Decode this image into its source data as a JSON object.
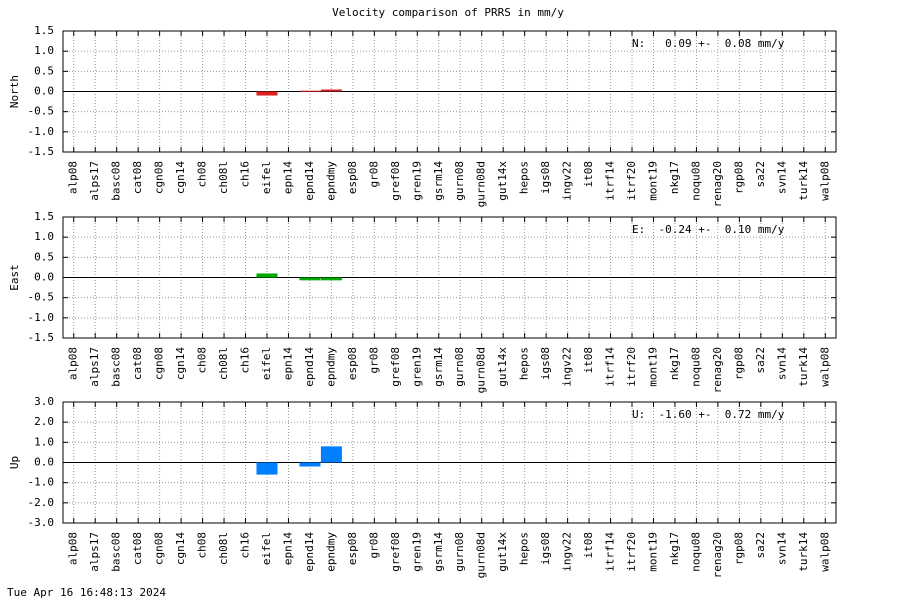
{
  "chart_data": [
    {
      "type": "bar",
      "title": "Velocity comparison of PRRS in mm/y",
      "ylabel": "North",
      "annotation": "N:   0.09 +-  0.08 mm/y",
      "color": "#dd2222",
      "grid": true,
      "categories": [
        "alp08",
        "alps17",
        "basc08",
        "cat08",
        "cgn08",
        "cgn14",
        "ch08",
        "ch08l",
        "ch16",
        "eifel",
        "epn14",
        "epnd14",
        "epndmy",
        "esp08",
        "gr08",
        "gref08",
        "gren19",
        "gsrm14",
        "gurn08",
        "gurn08d",
        "gut14x",
        "hepos",
        "igs08",
        "ingv22",
        "it08",
        "itrf14",
        "itrf20",
        "mont19",
        "nkg17",
        "noqu08",
        "renag20",
        "rgp08",
        "sa22",
        "svn14",
        "turk14",
        "walp08"
      ],
      "values": [
        null,
        null,
        null,
        null,
        null,
        null,
        null,
        null,
        null,
        -0.1,
        null,
        0.02,
        0.05,
        null,
        null,
        null,
        null,
        null,
        null,
        null,
        null,
        null,
        null,
        null,
        null,
        null,
        null,
        null,
        null,
        null,
        null,
        null,
        null,
        null,
        null,
        null
      ],
      "ylim": [
        -1.5,
        1.5
      ],
      "yticks": [
        1.5,
        {
          "value": 1.0,
          "label": "1.0"
        },
        0.5,
        {
          "value": 0.0,
          "label": "0.0"
        },
        -0.5,
        {
          "value": -1.0,
          "label": "-1.0"
        },
        -1.5
      ]
    },
    {
      "type": "bar",
      "ylabel": "East",
      "annotation": "E:  -0.24 +-  0.10 mm/y",
      "color": "#00aa00",
      "grid": true,
      "categories": [
        "alp08",
        "alps17",
        "basc08",
        "cat08",
        "cgn08",
        "cgn14",
        "ch08",
        "ch08l",
        "ch16",
        "eifel",
        "epn14",
        "epnd14",
        "epndmy",
        "esp08",
        "gr08",
        "gref08",
        "gren19",
        "gsrm14",
        "gurn08",
        "gurn08d",
        "gut14x",
        "hepos",
        "igs08",
        "ingv22",
        "it08",
        "itrf14",
        "itrf20",
        "mont19",
        "nkg17",
        "noqu08",
        "renag20",
        "rgp08",
        "sa22",
        "svn14",
        "turk14",
        "walp08"
      ],
      "values": [
        null,
        null,
        null,
        null,
        null,
        null,
        null,
        null,
        null,
        0.1,
        null,
        -0.07,
        -0.07,
        null,
        null,
        null,
        null,
        null,
        null,
        null,
        null,
        null,
        null,
        null,
        null,
        null,
        null,
        null,
        null,
        null,
        null,
        null,
        null,
        null,
        null,
        null
      ],
      "ylim": [
        -1.5,
        1.5
      ],
      "yticks": [
        1.5,
        {
          "value": 1.0,
          "label": "1.0"
        },
        0.5,
        {
          "value": 0.0,
          "label": "0.0"
        },
        -0.5,
        {
          "value": -1.0,
          "label": "-1.0"
        },
        -1.5
      ]
    },
    {
      "type": "bar",
      "ylabel": "Up",
      "annotation": "U:  -1.60 +-  0.72 mm/y",
      "color": "#0080ff",
      "grid": true,
      "categories": [
        "alp08",
        "alps17",
        "basc08",
        "cat08",
        "cgn08",
        "cgn14",
        "ch08",
        "ch08l",
        "ch16",
        "eifel",
        "epn14",
        "epnd14",
        "epndmy",
        "esp08",
        "gr08",
        "gref08",
        "gren19",
        "gsrm14",
        "gurn08",
        "gurn08d",
        "gut14x",
        "hepos",
        "igs08",
        "ingv22",
        "it08",
        "itrf14",
        "itrf20",
        "mont19",
        "nkg17",
        "noqu08",
        "renag20",
        "rgp08",
        "sa22",
        "svn14",
        "turk14",
        "walp08"
      ],
      "values": [
        null,
        null,
        null,
        null,
        null,
        null,
        null,
        null,
        null,
        -0.6,
        null,
        -0.2,
        0.8,
        null,
        null,
        null,
        null,
        null,
        null,
        null,
        null,
        null,
        null,
        null,
        null,
        null,
        null,
        null,
        null,
        null,
        null,
        null,
        null,
        null,
        null,
        null
      ],
      "ylim": [
        -3.0,
        3.0
      ],
      "yticks": [
        {
          "value": 3.0,
          "label": "3.0"
        },
        {
          "value": 2.0,
          "label": "2.0"
        },
        {
          "value": 1.0,
          "label": "1.0"
        },
        {
          "value": 0.0,
          "label": "0.0"
        },
        {
          "value": -1.0,
          "label": "-1.0"
        },
        {
          "value": -2.0,
          "label": "-2.0"
        },
        {
          "value": -3.0,
          "label": "-3.0"
        }
      ]
    }
  ],
  "timestamp": "Tue Apr 16 16:48:13 2024"
}
